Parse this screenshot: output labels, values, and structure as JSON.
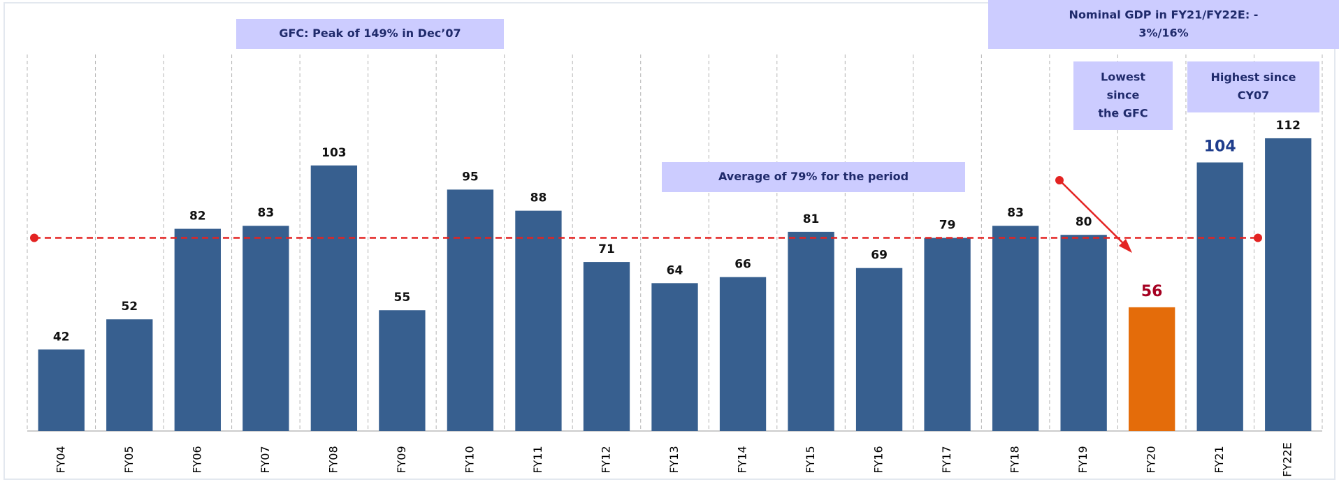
{
  "chart_data": {
    "type": "bar",
    "categories": [
      "FY04",
      "FY05",
      "FY06",
      "FY07",
      "FY08",
      "FY09",
      "FY10",
      "FY11",
      "FY12",
      "FY13",
      "FY14",
      "FY15",
      "FY16",
      "FY17",
      "FY18",
      "FY19",
      "FY20",
      "FY21",
      "FY22E"
    ],
    "values": [
      42,
      52,
      82,
      83,
      103,
      55,
      95,
      88,
      71,
      64,
      66,
      81,
      69,
      79,
      83,
      80,
      56,
      104,
      112
    ],
    "colors": [
      "#375f8f",
      "#375f8f",
      "#375f8f",
      "#375f8f",
      "#375f8f",
      "#375f8f",
      "#375f8f",
      "#375f8f",
      "#375f8f",
      "#375f8f",
      "#375f8f",
      "#375f8f",
      "#375f8f",
      "#375f8f",
      "#375f8f",
      "#375f8f",
      "#e46c0a",
      "#375f8f",
      "#375f8f"
    ],
    "label_colors": [
      "#111",
      "#111",
      "#111",
      "#111",
      "#111",
      "#111",
      "#111",
      "#111",
      "#111",
      "#111",
      "#111",
      "#111",
      "#111",
      "#111",
      "#111",
      "#111",
      "#a50021",
      "#1f3d8c",
      "#111"
    ],
    "ylim": [
      15,
      140
    ],
    "average": 79,
    "average_color": "#e32322",
    "annotations": [
      {
        "lines": [
          "GFC: Peak of 149% in Dec’07"
        ]
      },
      {
        "lines": [
          "Nominal GDP in FY21/FY22E: -",
          "3%/16%"
        ]
      },
      {
        "lines": [
          "Lowest",
          "since",
          "the GFC"
        ]
      },
      {
        "lines": [
          "Highest since",
          "CY07"
        ]
      },
      {
        "lines": [
          "Average of 79% for the period"
        ]
      }
    ]
  }
}
